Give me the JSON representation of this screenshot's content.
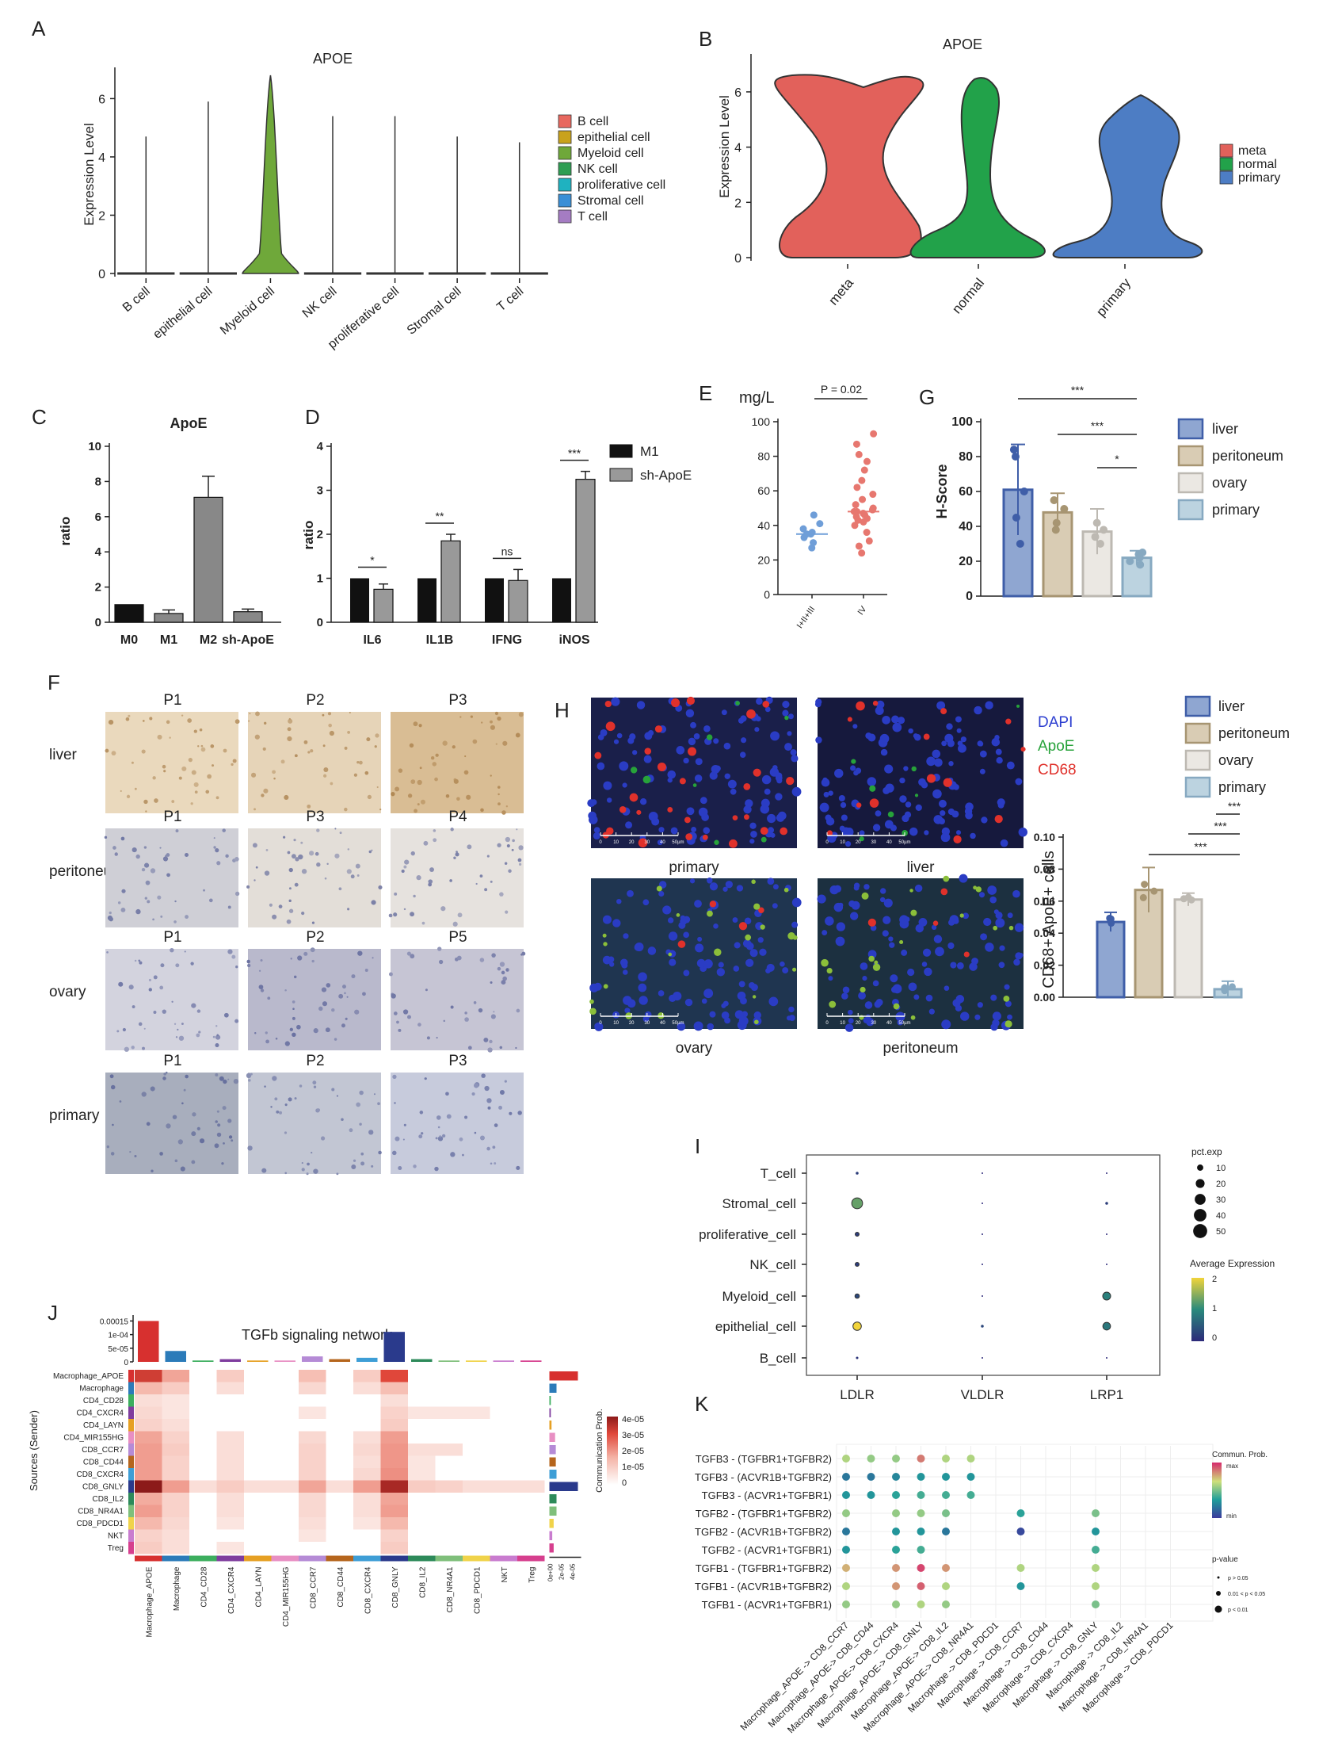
{
  "panels": {
    "A": "A",
    "B": "B",
    "C": "C",
    "D": "D",
    "E": "E",
    "F": "F",
    "G": "G",
    "H": "H",
    "I": "I",
    "J": "J",
    "K": "K"
  },
  "chart_data": [
    {
      "panel": "A",
      "type": "violin",
      "title": "APOE",
      "ylabel": "Expression Level",
      "ylim": [
        0,
        6.8
      ],
      "yticks": [
        "0",
        "2",
        "4",
        "6"
      ],
      "categories": [
        "B cell",
        "epithelial cell",
        "Myeloid cell",
        "NK cell",
        "proliferative cell",
        "Stromal cell",
        "T cell"
      ],
      "max_values": [
        4.7,
        5.9,
        6.8,
        5.4,
        5.4,
        4.7,
        4.5
      ],
      "legend": [
        "B cell",
        "epithelial cell",
        "Myeloid cell",
        "NK cell",
        "proliferative cell",
        "Stromal cell",
        "T cell"
      ],
      "colors": [
        "#e8685f",
        "#c9a21c",
        "#6fa83a",
        "#2e9e53",
        "#1fb2c0",
        "#3a8fd6",
        "#a57cc3"
      ]
    },
    {
      "panel": "B",
      "type": "violin",
      "title": "APOE",
      "ylabel": "Expression Level",
      "ylim": [
        0,
        6.6
      ],
      "yticks": [
        "0",
        "2",
        "4",
        "6"
      ],
      "categories": [
        "meta",
        "normal",
        "primary"
      ],
      "legend": [
        "meta",
        "normal",
        "primary"
      ],
      "colors": [
        "#e2615b",
        "#22a24a",
        "#4d7dc4"
      ]
    },
    {
      "panel": "C",
      "type": "bar",
      "title": "ApoE",
      "ylabel": "ratio",
      "ylim": [
        0,
        10
      ],
      "yticks": [
        "0",
        "2",
        "4",
        "6",
        "8",
        "10"
      ],
      "categories": [
        "M0",
        "M1",
        "M2",
        "sh-ApoE"
      ],
      "values": [
        1.0,
        0.5,
        7.1,
        0.6
      ],
      "errors": [
        0,
        0.2,
        1.2,
        0.15
      ],
      "colors": [
        "#111111",
        "#888888",
        "#888888",
        "#888888"
      ]
    },
    {
      "panel": "D",
      "type": "bar",
      "ylabel": "ratio",
      "ylim": [
        0,
        4
      ],
      "yticks": [
        "0",
        "1",
        "2",
        "3",
        "4"
      ],
      "categories": [
        "IL6",
        "IL1B",
        "IFNG",
        "iNOS"
      ],
      "series": [
        {
          "name": "M1",
          "values": [
            1,
            1,
            1,
            1
          ]
        },
        {
          "name": "sh-ApoE",
          "values": [
            0.75,
            1.85,
            0.95,
            3.25
          ],
          "errors": [
            0.12,
            0.15,
            0.25,
            0.18
          ]
        }
      ],
      "significance": [
        "*",
        "**",
        "ns",
        "***"
      ]
    },
    {
      "panel": "E",
      "type": "scatter",
      "ylabel": "mg/L",
      "ylim": [
        0,
        100
      ],
      "yticks": [
        "0",
        "20",
        "40",
        "60",
        "80",
        "100"
      ],
      "categories": [
        "I+II+III",
        "IV"
      ],
      "pvalue": "P = 0.02",
      "groups": [
        {
          "name": "I+II+III",
          "values": [
            27,
            30,
            33,
            35,
            35,
            36,
            38,
            41,
            46
          ]
        },
        {
          "name": "IV",
          "values": [
            24,
            28,
            31,
            36,
            40,
            42,
            43,
            44,
            45,
            46,
            47,
            48,
            48,
            49,
            50,
            52,
            55,
            58,
            62,
            66,
            72,
            77,
            81,
            87,
            93
          ]
        }
      ],
      "medians": [
        35,
        48
      ],
      "colors": [
        "#6f9ed8",
        "#e7776f"
      ]
    },
    {
      "panel": "G",
      "type": "bar",
      "ylabel": "H-Score",
      "ylim": [
        0,
        100
      ],
      "yticks": [
        "0",
        "20",
        "40",
        "60",
        "80",
        "100"
      ],
      "categories": [
        "liver",
        "peritoneum",
        "ovary",
        "primary"
      ],
      "values": [
        61,
        48,
        37,
        22
      ],
      "errors": [
        26,
        11,
        13,
        4
      ],
      "points": [
        [
          80,
          84,
          60,
          45,
          30
        ],
        [
          55,
          50,
          42,
          38
        ],
        [
          42,
          38,
          30,
          34
        ],
        [
          24,
          22,
          20,
          25,
          18
        ]
      ],
      "significance": [
        "***",
        "***",
        "*"
      ],
      "colors": [
        "#8fa6d1",
        "#d9ccb4",
        "#ebe8e3",
        "#bcd3e0"
      ],
      "edges": [
        "#3f5ea8",
        "#a79572",
        "#bdb9b2",
        "#87a9c1"
      ]
    },
    {
      "panel": "H",
      "type": "bar",
      "ylabel": "CD68+ ApoE+ cells",
      "ylim": [
        0,
        0.1
      ],
      "yticks": [
        "0.00",
        "0.02",
        "0.04",
        "0.06",
        "0.08",
        "0.10"
      ],
      "categories": [
        "liver",
        "peritoneum",
        "ovary",
        "primary"
      ],
      "values": [
        0.047,
        0.067,
        0.061,
        0.005
      ],
      "errors": [
        0.006,
        0.014,
        0.004,
        0.005
      ],
      "significance": [
        "***",
        "***",
        "***"
      ],
      "colors": [
        "#8fa6d1",
        "#d9ccb4",
        "#ebe8e3",
        "#bcd3e0"
      ],
      "edges": [
        "#3f5ea8",
        "#a79572",
        "#bdb9b2",
        "#87a9c1"
      ]
    },
    {
      "panel": "I",
      "type": "dotplot",
      "rows": [
        "T_cell",
        "Stromal_cell",
        "proliferative_cell",
        "NK_cell",
        "Myeloid_cell",
        "epithelial_cell",
        "B_cell"
      ],
      "columns": [
        "LDLR",
        "VLDLR",
        "LRP1"
      ],
      "pct_exp": [
        [
          2,
          0.5,
          0.5
        ],
        [
          30,
          0.5,
          2
        ],
        [
          4,
          0.5,
          0.5
        ],
        [
          4,
          0.5,
          0.5
        ],
        [
          5,
          0.5,
          16
        ],
        [
          18,
          2,
          15
        ],
        [
          1.5,
          0.5,
          0.5
        ]
      ],
      "avg_expr": [
        [
          0.2,
          0,
          0
        ],
        [
          1.3,
          0,
          0.2
        ],
        [
          0.2,
          0,
          0
        ],
        [
          0.2,
          0,
          0
        ],
        [
          0.3,
          0,
          0.9
        ],
        [
          2.0,
          0.3,
          0.8
        ],
        [
          0.1,
          0,
          0
        ]
      ],
      "legend_size_title": "pct.exp",
      "legend_size_ticks": [
        "10",
        "20",
        "30",
        "40",
        "50"
      ],
      "legend_color_title": "Average Expression",
      "legend_color_ticks": [
        "2",
        "1",
        "0"
      ]
    },
    {
      "panel": "J",
      "type": "heatmap",
      "title": "TGFb signaling network",
      "ylabel": "Sources (Sender)",
      "legend_title": "Communication Prob.",
      "legend_ticks": [
        "4e-05",
        "3e-05",
        "2e-05",
        "1e-05",
        "0"
      ],
      "top_ticks": [
        "0.00015",
        "1e-04",
        "5e-05",
        "0"
      ],
      "cells": [
        "Macrophage_APOE",
        "Macrophage",
        "CD4_CD28",
        "CD4_CXCR4",
        "CD4_LAYN",
        "CD4_MIR155HG",
        "CD8_CCR7",
        "CD8_CD44",
        "CD8_CXCR4",
        "CD8_GNLY",
        "CD8_IL2",
        "CD8_NR4A1",
        "CD8_PDCD1",
        "NKT",
        "Treg"
      ],
      "rows": [
        "Macrophage_APOE",
        "Macrophage",
        "CD4_CD28",
        "CD4_CXCR4",
        "CD4_LAYN",
        "CD4_MIR155HG",
        "CD8_CCR7",
        "CD8_CD44",
        "CD8_CXCR4",
        "CD8_GNLY",
        "CD8_IL2",
        "CD8_NR4A1",
        "CD8_PDCD1",
        "NKT",
        "Treg"
      ],
      "top_values": [
        0.00015,
        4e-05,
        5e-06,
        1e-05,
        5e-06,
        5e-06,
        2e-05,
        1e-05,
        1.5e-05,
        0.00011,
        1e-05,
        5e-06,
        5e-06,
        5e-06,
        5e-06
      ],
      "right_values": [
        4e-05,
        1e-05,
        2e-06,
        2e-06,
        3e-06,
        8e-06,
        9e-06,
        9e-06,
        1e-05,
        4e-05,
        1e-05,
        1e-05,
        6e-06,
        4e-06,
        6e-06
      ],
      "matrix": [
        [
          2.8,
          1.2,
          0,
          0.6,
          0,
          0,
          0.8,
          0,
          0.6,
          2.5,
          0,
          0,
          0,
          0,
          0
        ],
        [
          0.9,
          0.6,
          0,
          0.3,
          0,
          0,
          0.4,
          0,
          0.3,
          0.8,
          0,
          0,
          0,
          0,
          0
        ],
        [
          0.3,
          0.2,
          0,
          0,
          0,
          0,
          0,
          0,
          0,
          0.3,
          0,
          0,
          0,
          0,
          0
        ],
        [
          0.4,
          0.2,
          0,
          0,
          0,
          0,
          0.2,
          0,
          0,
          0.5,
          0.2,
          0.2,
          0.2,
          0,
          0
        ],
        [
          0.5,
          0.3,
          0,
          0,
          0,
          0,
          0,
          0,
          0,
          0.6,
          0,
          0,
          0,
          0,
          0
        ],
        [
          1.2,
          0.5,
          0,
          0.3,
          0,
          0,
          0.4,
          0,
          0.3,
          1.3,
          0,
          0,
          0,
          0,
          0
        ],
        [
          1.3,
          0.6,
          0,
          0.3,
          0,
          0,
          0.5,
          0,
          0.4,
          1.4,
          0.3,
          0.3,
          0,
          0,
          0
        ],
        [
          1.3,
          0.5,
          0,
          0.3,
          0,
          0,
          0.5,
          0,
          0.3,
          1.4,
          0.2,
          0,
          0,
          0,
          0
        ],
        [
          1.3,
          0.5,
          0,
          0.3,
          0,
          0,
          0.5,
          0,
          0.4,
          1.5,
          0.2,
          0,
          0,
          0,
          0
        ],
        [
          4.0,
          1.3,
          0.3,
          0.6,
          0.3,
          0.3,
          1.2,
          0.3,
          1.3,
          3.5,
          0.6,
          0.5,
          0.3,
          0.3,
          0.3
        ],
        [
          1.1,
          0.5,
          0,
          0.3,
          0,
          0,
          0.4,
          0,
          0.3,
          1.2,
          0,
          0,
          0,
          0,
          0
        ],
        [
          1.3,
          0.5,
          0,
          0.3,
          0,
          0,
          0.4,
          0,
          0.3,
          1.3,
          0,
          0,
          0,
          0,
          0
        ],
        [
          0.9,
          0.4,
          0,
          0.2,
          0,
          0,
          0.3,
          0,
          0.2,
          0.9,
          0,
          0,
          0,
          0,
          0
        ],
        [
          0.5,
          0.3,
          0,
          0,
          0,
          0,
          0.2,
          0,
          0,
          0.5,
          0,
          0,
          0,
          0,
          0
        ],
        [
          0.6,
          0.3,
          0,
          0.2,
          0,
          0,
          0,
          0,
          0,
          0.6,
          0,
          0,
          0,
          0,
          0
        ]
      ],
      "cell_colors": [
        "#d7302f",
        "#2b7bb9",
        "#3cae5e",
        "#7f3d9e",
        "#e6a023",
        "#e88fc3",
        "#b58bd6",
        "#b5651d",
        "#3e9ed6",
        "#2a3a8c",
        "#2d8a5a",
        "#7fbf7b",
        "#f0d34a",
        "#c97ccf",
        "#d63f8e"
      ]
    },
    {
      "panel": "K",
      "type": "dotplot",
      "rows": [
        "TGFB3 - (TGFBR1+TGFBR2)",
        "TGFB3 - (ACVR1B+TGFBR2)",
        "TGFB3 - (ACVR1+TGFBR1)",
        "TGFB2 - (TGFBR1+TGFBR2)",
        "TGFB2 - (ACVR1B+TGFBR2)",
        "TGFB2 - (ACVR1+TGFBR1)",
        "TGFB1 - (TGFBR1+TGFBR2)",
        "TGFB1 - (ACVR1B+TGFBR2)",
        "TGFB1 - (ACVR1+TGFBR1)"
      ],
      "columns": [
        "Macrophage_APOE -> CD8_CCR7",
        "Macrophage_APOE-> CD8_CD44",
        "Macrophage_APOE-> CD8_CXCR4",
        "Macrophage_APOE-> CD8_GNLY",
        "Macrophage_APOE-> CD8_IL2",
        "Macrophage_APOE-> CD8_NR4A1",
        "Macrophage -> CD8_PDCD1",
        "Macrophage -> CD8_CCR7",
        "Macrophage -> CD8_CD44",
        "Macrophage -> CD8_CXCR4",
        "Macrophage -> CD8_GNLY",
        "Macrophage -> CD8_IL2",
        "Macrophage -> CD8_NR4A1",
        "Macrophage -> CD8_PDCD1"
      ],
      "dots": [
        [
          0,
          0,
          0.6
        ],
        [
          0,
          1,
          0.55
        ],
        [
          0,
          2,
          0.55
        ],
        [
          0,
          3,
          0.85
        ],
        [
          0,
          4,
          0.6
        ],
        [
          0,
          5,
          0.6
        ],
        [
          1,
          0,
          0.2
        ],
        [
          1,
          1,
          0.2
        ],
        [
          1,
          2,
          0.25
        ],
        [
          1,
          3,
          0.3
        ],
        [
          1,
          4,
          0.3
        ],
        [
          1,
          5,
          0.3
        ],
        [
          2,
          0,
          0.3
        ],
        [
          2,
          1,
          0.3
        ],
        [
          2,
          2,
          0.35
        ],
        [
          2,
          3,
          0.4
        ],
        [
          2,
          4,
          0.4
        ],
        [
          2,
          5,
          0.4
        ],
        [
          3,
          0,
          0.55
        ],
        [
          3,
          2,
          0.55
        ],
        [
          3,
          3,
          0.55
        ],
        [
          3,
          4,
          0.5
        ],
        [
          3,
          7,
          0.35
        ],
        [
          3,
          10,
          0.5
        ],
        [
          4,
          0,
          0.2
        ],
        [
          4,
          2,
          0.3
        ],
        [
          4,
          3,
          0.3
        ],
        [
          4,
          4,
          0.2
        ],
        [
          4,
          7,
          0.05
        ],
        [
          4,
          10,
          0.3
        ],
        [
          5,
          0,
          0.3
        ],
        [
          5,
          2,
          0.35
        ],
        [
          5,
          3,
          0.4
        ],
        [
          5,
          10,
          0.4
        ],
        [
          6,
          0,
          0.75
        ],
        [
          6,
          2,
          0.8
        ],
        [
          6,
          3,
          0.95
        ],
        [
          6,
          4,
          0.8
        ],
        [
          6,
          7,
          0.6
        ],
        [
          6,
          10,
          0.6
        ],
        [
          7,
          0,
          0.6
        ],
        [
          7,
          2,
          0.8
        ],
        [
          7,
          3,
          0.9
        ],
        [
          7,
          4,
          0.6
        ],
        [
          7,
          7,
          0.3
        ],
        [
          7,
          10,
          0.6
        ],
        [
          8,
          0,
          0.55
        ],
        [
          8,
          2,
          0.55
        ],
        [
          8,
          3,
          0.6
        ],
        [
          8,
          4,
          0.55
        ],
        [
          8,
          10,
          0.5
        ]
      ],
      "legend_color_title": "Commun. Prob.",
      "legend_color_ticks": [
        "max",
        "min"
      ],
      "legend_size_title": "p-value",
      "legend_size_ticks": [
        "p > 0.05",
        "0.01 < p < 0.05",
        "p < 0.01"
      ]
    }
  ],
  "panel_F": {
    "rows": [
      {
        "label": "liver",
        "patients": [
          "P1",
          "P2",
          "P3"
        ],
        "tones": [
          "#ead9bd",
          "#e6d4b8",
          "#d9bd94"
        ]
      },
      {
        "label": "peritoneum",
        "patients": [
          "P1",
          "P3",
          "P4"
        ],
        "tones": [
          "#cfcfd6",
          "#e3ded8",
          "#e6e2de"
        ]
      },
      {
        "label": "ovary",
        "patients": [
          "P1",
          "P2",
          "P5"
        ],
        "tones": [
          "#d3d3de",
          "#b9b9cc",
          "#c6c5d4"
        ]
      },
      {
        "label": "primary",
        "patients": [
          "P1",
          "P2",
          "P3"
        ],
        "tones": [
          "#a8aebd",
          "#c2c6d3",
          "#c7cbdc"
        ]
      }
    ]
  },
  "panel_H_images": {
    "images": [
      {
        "label": "primary",
        "tone": "#1a1f4a"
      },
      {
        "label": "liver",
        "tone": "#16193d"
      },
      {
        "label": "ovary",
        "tone": "#1f3550"
      },
      {
        "label": "peritoneum",
        "tone": "#1c3040"
      }
    ],
    "channel_legend": [
      {
        "name": "DAPI",
        "color": "#2d3fd0"
      },
      {
        "name": "ApoE",
        "color": "#27a23a"
      },
      {
        "name": "CD68",
        "color": "#e0312b"
      }
    ],
    "scale_ticks": [
      "0",
      "10",
      "20",
      "30",
      "40",
      "50µm"
    ]
  }
}
